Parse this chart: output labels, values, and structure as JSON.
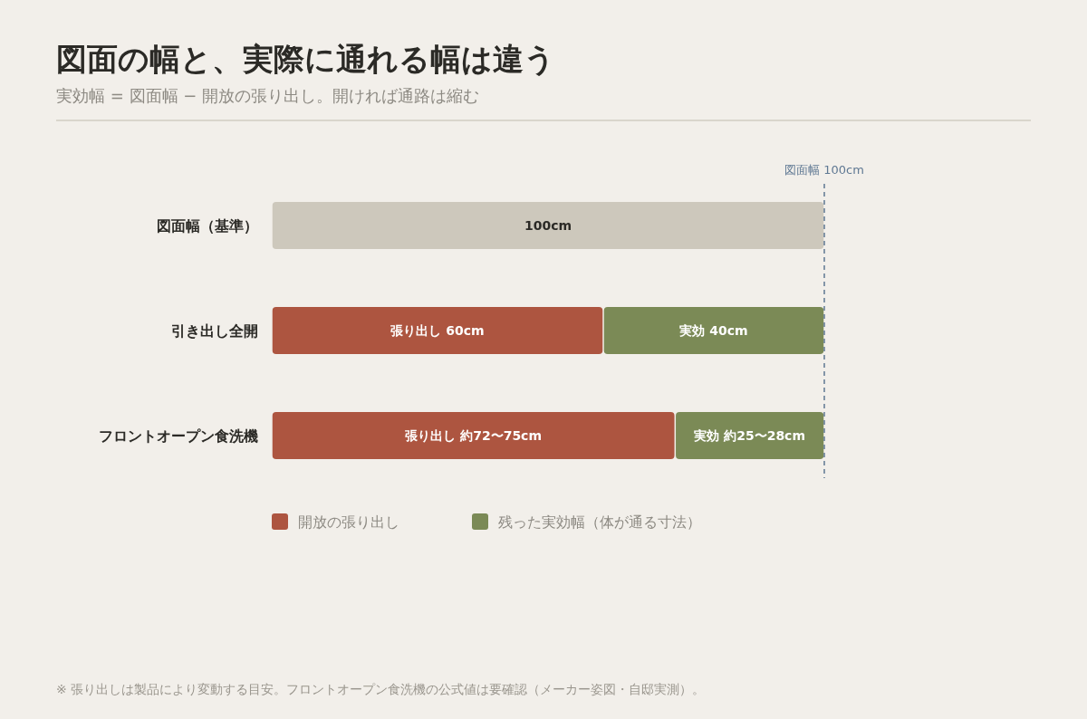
{
  "chart_data": {
    "type": "bar",
    "orientation": "horizontal",
    "stacked": true,
    "title": "図面の幅と、実際に通れる幅は違う",
    "subtitle": "実効幅 = 図面幅 − 開放の張り出し。開ければ通路は縮む",
    "categories": [
      "図面幅（基準）",
      "引き出し全開",
      "フロントオープン食洗機"
    ],
    "series": [
      {
        "color": "#cdc8bc",
        "values": [
          100,
          null,
          null
        ],
        "value_labels": [
          "100cm",
          null,
          null
        ]
      },
      {
        "name": "開放の張り出し",
        "color": "#ad5540",
        "values": [
          null,
          60,
          73
        ],
        "value_labels": [
          null,
          "張り出し 60cm",
          "張り出し 約72〜75cm"
        ]
      },
      {
        "name": "残った実効幅（体が通る寸法）",
        "color": "#7b8a56",
        "values": [
          null,
          40,
          27
        ],
        "value_labels": [
          null,
          "実効 40cm",
          "実効 約25〜28cm"
        ]
      }
    ],
    "xlim": [
      0,
      100
    ],
    "tick_labels": "y",
    "ref_lines": [
      {
        "axis": "x",
        "value": 100,
        "label": "図面幅 100cm",
        "color": "#5f7893",
        "line_style": "dashed"
      }
    ],
    "legend": "bottom",
    "annotations": [
      "※ 張り出しは製品により変動する目安。フロントオープン食洗機の公式値は要確認（メーカー姿図・自邸実測）。"
    ]
  }
}
